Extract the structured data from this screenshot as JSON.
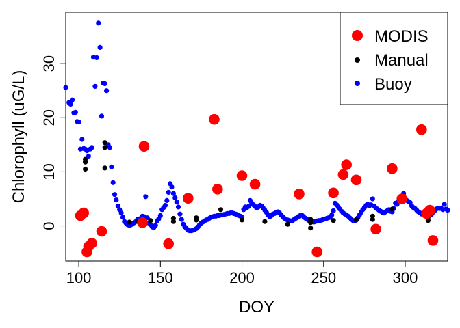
{
  "chart_data": {
    "type": "scatter",
    "title": "",
    "xlabel": "DOY",
    "ylabel": "Chlorophyll (uG/L)",
    "xlim": [
      92,
      326
    ],
    "ylim": [
      -6.5,
      39.5
    ],
    "xticks": [
      100,
      150,
      200,
      250,
      300
    ],
    "yticks": [
      0,
      10,
      20,
      30
    ],
    "grid": false,
    "legend_position": "top-right",
    "legend": [
      "MODIS",
      "Manual",
      "Buoy"
    ],
    "series": [
      {
        "name": "Buoy",
        "color": "#0000ff",
        "marker": "small-dot",
        "points": [
          [
            92,
            25.6
          ],
          [
            94,
            22.8
          ],
          [
            95,
            22.5
          ],
          [
            96,
            23.3
          ],
          [
            97,
            20.9
          ],
          [
            98,
            21.0
          ],
          [
            99,
            19.3
          ],
          [
            100,
            19.2
          ],
          [
            101,
            14.2
          ],
          [
            102,
            16.0
          ],
          [
            103,
            14.3
          ],
          [
            104,
            14.2
          ],
          [
            105,
            13.9
          ],
          [
            106,
            12.9
          ],
          [
            107,
            14.2
          ],
          [
            108,
            14.5
          ],
          [
            109,
            31.2
          ],
          [
            110,
            25.8
          ],
          [
            111,
            31.1
          ],
          [
            112,
            37.5
          ],
          [
            113,
            33.0
          ],
          [
            114,
            20.3
          ],
          [
            115,
            26.4
          ],
          [
            116,
            26.3
          ],
          [
            117,
            25.0
          ],
          [
            118,
            15.0
          ],
          [
            119,
            14.5
          ],
          [
            120,
            10.9
          ],
          [
            121,
            8.0
          ],
          [
            122,
            5.8
          ],
          [
            123,
            4.8
          ],
          [
            124,
            3.7
          ],
          [
            125,
            3.0
          ],
          [
            126,
            2.4
          ],
          [
            127,
            1.6
          ],
          [
            128,
            0.8
          ],
          [
            129,
            0.5
          ],
          [
            130,
            0.2
          ],
          [
            131,
            0.1
          ],
          [
            132,
            0.2
          ],
          [
            133,
            0.4
          ],
          [
            134,
            0.6
          ],
          [
            135,
            0.8
          ],
          [
            136,
            1.2
          ],
          [
            137,
            1.3
          ],
          [
            138,
            1.4
          ],
          [
            139,
            1.8
          ],
          [
            140,
            1.7
          ],
          [
            141,
            5.4
          ],
          [
            142,
            1.5
          ],
          [
            143,
            0.5
          ],
          [
            144,
            0.2
          ],
          [
            145,
            -0.2
          ],
          [
            146,
            -0.3
          ],
          [
            147,
            0.1
          ],
          [
            148,
            0.9
          ],
          [
            149,
            1.3
          ],
          [
            150,
            1.9
          ],
          [
            151,
            3.0
          ],
          [
            152,
            3.4
          ],
          [
            153,
            3.8
          ],
          [
            154,
            4.7
          ],
          [
            155,
            6.2
          ],
          [
            156,
            7.8
          ],
          [
            157,
            7.2
          ],
          [
            158,
            6.0
          ],
          [
            159,
            5.2
          ],
          [
            160,
            4.4
          ],
          [
            161,
            3.5
          ],
          [
            162,
            2.2
          ],
          [
            163,
            1.2
          ],
          [
            164,
            0.3
          ],
          [
            165,
            -0.2
          ],
          [
            166,
            -0.5
          ],
          [
            167,
            -0.8
          ],
          [
            168,
            -0.9
          ],
          [
            169,
            -0.9
          ],
          [
            170,
            -0.8
          ],
          [
            171,
            -0.7
          ],
          [
            172,
            -0.5
          ],
          [
            173,
            -0.2
          ],
          [
            174,
            0.2
          ],
          [
            175,
            0.5
          ],
          [
            176,
            0.7
          ],
          [
            177,
            0.9
          ],
          [
            178,
            1.1
          ],
          [
            179,
            1.2
          ],
          [
            180,
            1.4
          ],
          [
            181,
            1.6
          ],
          [
            182,
            1.7
          ],
          [
            183,
            1.8
          ],
          [
            184,
            1.8
          ],
          [
            185,
            1.9
          ],
          [
            186,
            1.9
          ],
          [
            187,
            2.0
          ],
          [
            188,
            2.0
          ],
          [
            189,
            2.1
          ],
          [
            190,
            2.2
          ],
          [
            191,
            2.3
          ],
          [
            192,
            2.3
          ],
          [
            193,
            2.4
          ],
          [
            194,
            2.4
          ],
          [
            195,
            2.3
          ],
          [
            196,
            2.2
          ],
          [
            197,
            2.1
          ],
          [
            198,
            1.9
          ],
          [
            199,
            1.8
          ],
          [
            200,
            1.6
          ],
          [
            201,
            3.0
          ],
          [
            202,
            3.5
          ],
          [
            203,
            3.4
          ],
          [
            204,
            3.6
          ],
          [
            205,
            4.7
          ],
          [
            206,
            4.2
          ],
          [
            207,
            3.9
          ],
          [
            208,
            3.6
          ],
          [
            209,
            3.3
          ],
          [
            210,
            3.5
          ],
          [
            211,
            3.8
          ],
          [
            212,
            3.7
          ],
          [
            213,
            3.3
          ],
          [
            214,
            2.9
          ],
          [
            215,
            2.5
          ],
          [
            216,
            2.0
          ],
          [
            217,
            1.7
          ],
          [
            218,
            1.9
          ],
          [
            219,
            2.2
          ],
          [
            220,
            2.3
          ],
          [
            221,
            2.5
          ],
          [
            222,
            2.6
          ],
          [
            223,
            2.4
          ],
          [
            224,
            2.0
          ],
          [
            225,
            1.7
          ],
          [
            226,
            1.4
          ],
          [
            227,
            1.2
          ],
          [
            228,
            1.1
          ],
          [
            229,
            1.0
          ],
          [
            230,
            0.9
          ],
          [
            231,
            1.0
          ],
          [
            232,
            1.2
          ],
          [
            233,
            1.4
          ],
          [
            234,
            1.6
          ],
          [
            235,
            1.8
          ],
          [
            236,
            2.0
          ],
          [
            237,
            1.9
          ],
          [
            238,
            1.6
          ],
          [
            239,
            1.4
          ],
          [
            240,
            1.2
          ],
          [
            241,
            1.0
          ],
          [
            242,
            0.9
          ],
          [
            243,
            0.8
          ],
          [
            244,
            0.7
          ],
          [
            245,
            0.8
          ],
          [
            246,
            0.9
          ],
          [
            247,
            1.0
          ],
          [
            248,
            1.0
          ],
          [
            249,
            1.1
          ],
          [
            250,
            1.2
          ],
          [
            251,
            1.3
          ],
          [
            252,
            1.4
          ],
          [
            253,
            1.5
          ],
          [
            254,
            1.6
          ],
          [
            255,
            2.0
          ],
          [
            256,
            2.8
          ],
          [
            257,
            4.2
          ],
          [
            258,
            3.9
          ],
          [
            259,
            3.5
          ],
          [
            260,
            3.1
          ],
          [
            261,
            2.7
          ],
          [
            262,
            2.4
          ],
          [
            263,
            2.2
          ],
          [
            264,
            2.0
          ],
          [
            265,
            1.8
          ],
          [
            266,
            1.5
          ],
          [
            267,
            1.2
          ],
          [
            268,
            1.0
          ],
          [
            269,
            0.9
          ],
          [
            270,
            1.1
          ],
          [
            271,
            1.5
          ],
          [
            272,
            2.0
          ],
          [
            273,
            2.5
          ],
          [
            274,
            3.0
          ],
          [
            275,
            3.4
          ],
          [
            276,
            3.8
          ],
          [
            277,
            4.0
          ],
          [
            278,
            3.7
          ],
          [
            279,
            3.9
          ],
          [
            280,
            5.0
          ],
          [
            281,
            3.7
          ],
          [
            282,
            3.3
          ],
          [
            283,
            3.1
          ],
          [
            284,
            2.9
          ],
          [
            285,
            2.7
          ],
          [
            286,
            2.5
          ],
          [
            287,
            2.4
          ],
          [
            288,
            2.6
          ],
          [
            289,
            2.8
          ],
          [
            290,
            3.0
          ],
          [
            291,
            2.7
          ],
          [
            292,
            2.6
          ],
          [
            293,
            3.2
          ],
          [
            294,
            4.2
          ],
          [
            295,
            4.0
          ],
          [
            296,
            4.6
          ],
          [
            297,
            5.3
          ],
          [
            298,
            5.3
          ],
          [
            299,
            6.0
          ],
          [
            300,
            5.0
          ],
          [
            301,
            4.7
          ],
          [
            302,
            4.5
          ],
          [
            303,
            4.3
          ],
          [
            304,
            3.7
          ],
          [
            305,
            3.4
          ],
          [
            306,
            3.2
          ],
          [
            307,
            2.9
          ],
          [
            308,
            2.6
          ],
          [
            309,
            2.4
          ],
          [
            310,
            2.2
          ],
          [
            311,
            2.3
          ],
          [
            312,
            2.4
          ],
          [
            313,
            2.3
          ],
          [
            314,
            2.2
          ],
          [
            315,
            2.0
          ],
          [
            316,
            2.1
          ],
          [
            317,
            2.5
          ],
          [
            318,
            2.8
          ],
          [
            319,
            3.1
          ],
          [
            320,
            3.3
          ],
          [
            321,
            3.2
          ],
          [
            322,
            3.3
          ],
          [
            323,
            3.0
          ],
          [
            324,
            4.0
          ],
          [
            325,
            3.1
          ],
          [
            326,
            2.9
          ]
        ]
      },
      {
        "name": "Manual",
        "color": "#000000",
        "marker": "dot",
        "points": [
          [
            104,
            12.3
          ],
          [
            104,
            11.8
          ],
          [
            104,
            10.5
          ],
          [
            116,
            15.4
          ],
          [
            116,
            14.5
          ],
          [
            116,
            10.7
          ],
          [
            131,
            0.7
          ],
          [
            136,
            0.8
          ],
          [
            144,
            1.0
          ],
          [
            158,
            1.4
          ],
          [
            158,
            0.8
          ],
          [
            172,
            1.5
          ],
          [
            172,
            1.1
          ],
          [
            187,
            3.0
          ],
          [
            200,
            1.1
          ],
          [
            214,
            0.8
          ],
          [
            228,
            0.3
          ],
          [
            242,
            1.2
          ],
          [
            242,
            0.6
          ],
          [
            242,
            -0.4
          ],
          [
            256,
            1.0
          ],
          [
            270,
            1.2
          ],
          [
            280,
            1.8
          ],
          [
            280,
            1.2
          ],
          [
            292,
            3.1
          ],
          [
            298,
            5.1
          ],
          [
            314,
            1.6
          ],
          [
            314,
            1.0
          ]
        ]
      },
      {
        "name": "MODIS",
        "color": "#ff0000",
        "marker": "large-dot",
        "points": [
          [
            101,
            1.9
          ],
          [
            103,
            2.4
          ],
          [
            105,
            -4.8
          ],
          [
            106,
            -3.8
          ],
          [
            108,
            -3.2
          ],
          [
            114,
            -1.0
          ],
          [
            139,
            0.6
          ],
          [
            140,
            14.7
          ],
          [
            155,
            -3.3
          ],
          [
            167,
            5.1
          ],
          [
            183,
            19.7
          ],
          [
            185,
            6.8
          ],
          [
            200,
            9.3
          ],
          [
            208,
            7.7
          ],
          [
            235,
            5.9
          ],
          [
            246,
            -4.8
          ],
          [
            256,
            6.1
          ],
          [
            262,
            9.5
          ],
          [
            264,
            11.3
          ],
          [
            270,
            8.5
          ],
          [
            282,
            -0.6
          ],
          [
            292,
            10.6
          ],
          [
            298,
            5.0
          ],
          [
            310,
            17.8
          ],
          [
            313,
            2.3
          ],
          [
            315,
            2.9
          ],
          [
            317,
            -2.7
          ]
        ]
      }
    ]
  }
}
